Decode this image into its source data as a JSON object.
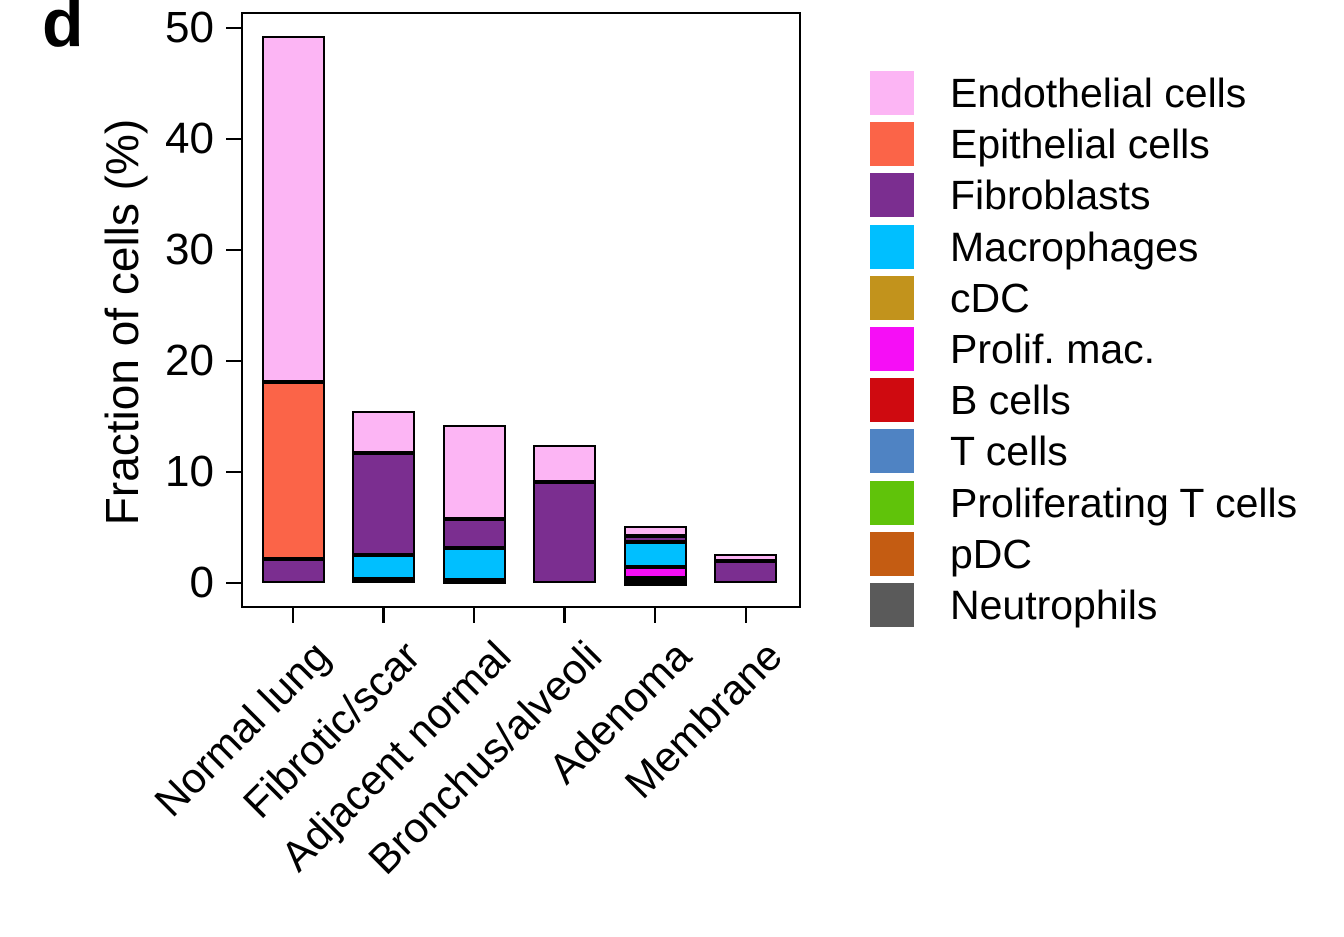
{
  "panel_label": "d",
  "chart_data": {
    "type": "bar",
    "stacked": true,
    "title": "",
    "ylabel": "Fraction of cells (%)",
    "xlabel": "",
    "ylim": [
      0,
      50
    ],
    "yticks": [
      0,
      10,
      20,
      30,
      40,
      50
    ],
    "grid": false,
    "legend_position": "right",
    "stack_order": "bottom-to-top is reverse of legend order",
    "bar_outline_color": "#000000",
    "categories": [
      "Normal lung",
      "Fibrotic/scar",
      "Adjacent normal",
      "Bronchus/alveoli",
      "Adenoma",
      "Membrane"
    ],
    "series": [
      {
        "name": "Endothelial cells",
        "color": "#fcb5f4",
        "values": [
          31.2,
          3.8,
          8.45,
          3.3,
          0.9,
          0.65
        ]
      },
      {
        "name": "Epithelial cells",
        "color": "#fb6448",
        "values": [
          15.9,
          0,
          0,
          0,
          0,
          0
        ]
      },
      {
        "name": "Fibroblasts",
        "color": "#7b2e90",
        "values": [
          2.2,
          9.2,
          2.6,
          9.1,
          0.55,
          1.95
        ]
      },
      {
        "name": "Macrophages",
        "color": "#00bfff",
        "values": [
          0,
          2.1,
          2.9,
          0,
          2.2,
          0
        ]
      },
      {
        "name": "cDC",
        "color": "#c2931c",
        "values": [
          0,
          0,
          0,
          0,
          0,
          0
        ]
      },
      {
        "name": "Prolif. mac.",
        "color": "#f60ef6",
        "values": [
          0,
          0,
          0,
          0,
          1.0,
          0
        ]
      },
      {
        "name": "B cells",
        "color": "#cf0a10",
        "values": [
          0,
          0,
          0,
          0,
          0.35,
          0
        ]
      },
      {
        "name": "T cells",
        "color": "#4f83c3",
        "values": [
          0,
          0,
          0,
          0,
          0,
          0
        ]
      },
      {
        "name": "Proliferating T cells",
        "color": "#60c30a",
        "values": [
          0,
          0,
          0,
          0,
          0,
          0
        ]
      },
      {
        "name": "pDC",
        "color": "#c45c12",
        "values": [
          0,
          0,
          0,
          0,
          0,
          0
        ]
      },
      {
        "name": "Neutrophils",
        "color": "#5a5a5a",
        "values": [
          0,
          0.4,
          0.25,
          0,
          0.1,
          0
        ]
      }
    ],
    "bar_totals": [
      49.3,
      15.5,
      14.2,
      12.4,
      5.1,
      2.6
    ]
  }
}
